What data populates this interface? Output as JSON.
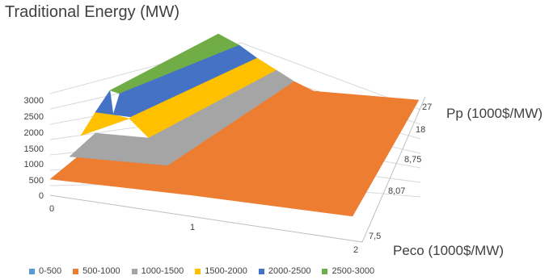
{
  "chart_data": {
    "type": "surface",
    "title": "Traditional Energy (MW)",
    "x_axis": {
      "label": "Peco (1000$/MW)",
      "ticks": [
        "7,5",
        "8,07",
        "8,75",
        "18",
        "27"
      ]
    },
    "y_axis": {
      "label": "Pp (1000$/MW)",
      "ticks": [
        "27",
        "18",
        "8,75",
        "8,07",
        "7,5"
      ]
    },
    "depth_axis": {
      "ticks": [
        "0",
        "1",
        "2"
      ]
    },
    "z_axis": {
      "ticks": [
        "0",
        "500",
        "1000",
        "1500",
        "2000",
        "2500",
        "3000"
      ],
      "range": [
        0,
        3000
      ]
    },
    "series": [
      {
        "name": "0-500",
        "color": "#5B9BD5"
      },
      {
        "name": "500-1000",
        "color": "#ED7D31"
      },
      {
        "name": "1000-1500",
        "color": "#A5A5A5"
      },
      {
        "name": "1500-2000",
        "color": "#FFC000"
      },
      {
        "name": "2000-2500",
        "color": "#4472C4"
      },
      {
        "name": "2500-3000",
        "color": "#70AD47"
      }
    ],
    "grid": true,
    "legend_position": "bottom"
  }
}
